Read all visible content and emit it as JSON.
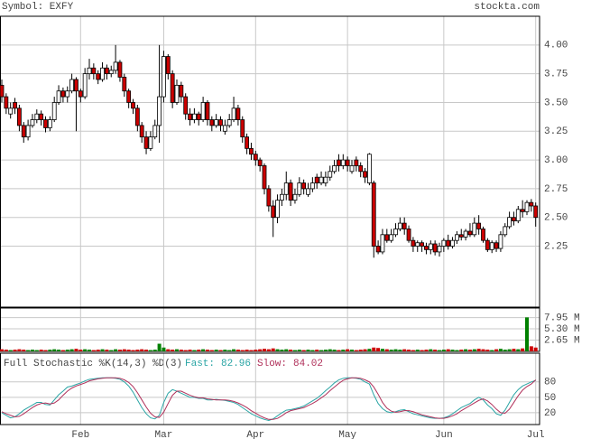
{
  "header": {
    "symbol": "Symbol: EXFY",
    "site": "stockta.com"
  },
  "chart_data": [
    {
      "type": "candlestick",
      "categories": [
        null,
        null,
        null,
        null,
        null,
        null,
        null,
        null,
        null,
        null,
        null,
        null,
        null,
        null,
        null,
        null,
        null,
        null,
        "Feb",
        null,
        null,
        null,
        null,
        null,
        null,
        null,
        null,
        null,
        null,
        null,
        null,
        null,
        null,
        null,
        null,
        null,
        null,
        "Mar",
        null,
        null,
        null,
        null,
        null,
        null,
        null,
        null,
        null,
        null,
        null,
        null,
        null,
        null,
        null,
        null,
        null,
        null,
        null,
        null,
        "Apr",
        null,
        null,
        null,
        null,
        null,
        null,
        null,
        null,
        null,
        null,
        null,
        null,
        null,
        null,
        null,
        null,
        null,
        null,
        null,
        null,
        "May",
        null,
        null,
        null,
        null,
        null,
        null,
        null,
        null,
        null,
        null,
        null,
        null,
        null,
        null,
        null,
        null,
        null,
        null,
        null,
        null,
        null,
        "Jun",
        null,
        null,
        null,
        null,
        null,
        null,
        null,
        null,
        null,
        null,
        null,
        null,
        null,
        null,
        null,
        null,
        null,
        null,
        null,
        null,
        "Jul"
      ],
      "ohlc": [
        [
          3.65,
          3.7,
          3.5,
          3.55
        ],
        [
          3.55,
          3.58,
          3.4,
          3.45
        ],
        [
          3.4,
          3.5,
          3.36,
          3.45
        ],
        [
          3.5,
          3.54,
          3.4,
          3.45
        ],
        [
          3.45,
          3.48,
          3.25,
          3.3
        ],
        [
          3.3,
          3.33,
          3.15,
          3.2
        ],
        [
          3.2,
          3.35,
          3.17,
          3.3
        ],
        [
          3.3,
          3.4,
          3.28,
          3.35
        ],
        [
          3.35,
          3.44,
          3.32,
          3.4
        ],
        [
          3.4,
          3.43,
          3.3,
          3.35
        ],
        [
          3.35,
          3.38,
          3.24,
          3.28
        ],
        [
          3.28,
          3.38,
          3.25,
          3.35
        ],
        [
          3.35,
          3.55,
          3.33,
          3.5
        ],
        [
          3.5,
          3.65,
          3.48,
          3.6
        ],
        [
          3.6,
          3.63,
          3.5,
          3.55
        ],
        [
          3.55,
          3.64,
          3.5,
          3.6
        ],
        [
          3.6,
          3.75,
          3.58,
          3.7
        ],
        [
          3.7,
          3.72,
          3.25,
          3.6
        ],
        [
          3.6,
          3.62,
          3.5,
          3.55
        ],
        [
          3.55,
          3.8,
          3.53,
          3.75
        ],
        [
          3.75,
          3.88,
          3.7,
          3.8
        ],
        [
          3.8,
          3.84,
          3.7,
          3.75
        ],
        [
          3.75,
          3.78,
          3.66,
          3.7
        ],
        [
          3.7,
          3.85,
          3.68,
          3.8
        ],
        [
          3.8,
          3.83,
          3.7,
          3.75
        ],
        [
          3.75,
          3.82,
          3.72,
          3.78
        ],
        [
          3.78,
          4.0,
          3.75,
          3.85
        ],
        [
          3.85,
          3.87,
          3.68,
          3.72
        ],
        [
          3.72,
          3.75,
          3.55,
          3.6
        ],
        [
          3.6,
          3.62,
          3.45,
          3.5
        ],
        [
          3.5,
          3.53,
          3.4,
          3.45
        ],
        [
          3.45,
          3.48,
          3.25,
          3.3
        ],
        [
          3.3,
          3.33,
          3.15,
          3.2
        ],
        [
          3.2,
          3.25,
          3.05,
          3.1
        ],
        [
          3.1,
          3.25,
          3.08,
          3.2
        ],
        [
          3.2,
          3.35,
          3.18,
          3.3
        ],
        [
          3.3,
          4.0,
          3.15,
          3.55
        ],
        [
          3.55,
          3.95,
          3.5,
          3.9
        ],
        [
          3.9,
          3.92,
          3.7,
          3.75
        ],
        [
          3.75,
          3.78,
          3.45,
          3.5
        ],
        [
          3.5,
          3.7,
          3.48,
          3.65
        ],
        [
          3.65,
          3.68,
          3.5,
          3.55
        ],
        [
          3.55,
          3.58,
          3.35,
          3.4
        ],
        [
          3.4,
          3.45,
          3.3,
          3.35
        ],
        [
          3.35,
          3.45,
          3.32,
          3.4
        ],
        [
          3.4,
          3.42,
          3.3,
          3.35
        ],
        [
          3.35,
          3.55,
          3.33,
          3.5
        ],
        [
          3.5,
          3.52,
          3.3,
          3.35
        ],
        [
          3.35,
          3.38,
          3.25,
          3.3
        ],
        [
          3.3,
          3.4,
          3.28,
          3.35
        ],
        [
          3.35,
          3.38,
          3.25,
          3.3
        ],
        [
          3.25,
          3.35,
          3.22,
          3.3
        ],
        [
          3.3,
          3.4,
          3.28,
          3.35
        ],
        [
          3.35,
          3.55,
          3.33,
          3.45
        ],
        [
          3.45,
          3.48,
          3.3,
          3.35
        ],
        [
          3.35,
          3.38,
          3.15,
          3.2
        ],
        [
          3.2,
          3.23,
          3.05,
          3.1
        ],
        [
          3.1,
          3.15,
          3.0,
          3.05
        ],
        [
          3.05,
          3.08,
          2.95,
          3.0
        ],
        [
          3.0,
          3.02,
          2.9,
          2.95
        ],
        [
          2.95,
          2.97,
          2.7,
          2.75
        ],
        [
          2.75,
          2.78,
          2.55,
          2.6
        ],
        [
          2.6,
          2.65,
          2.33,
          2.5
        ],
        [
          2.5,
          2.7,
          2.45,
          2.65
        ],
        [
          2.65,
          2.75,
          2.6,
          2.7
        ],
        [
          2.7,
          2.9,
          2.65,
          2.8
        ],
        [
          2.8,
          2.83,
          2.6,
          2.65
        ],
        [
          2.65,
          2.75,
          2.62,
          2.7
        ],
        [
          2.7,
          2.85,
          2.68,
          2.8
        ],
        [
          2.8,
          2.83,
          2.7,
          2.75
        ],
        [
          2.7,
          2.8,
          2.68,
          2.75
        ],
        [
          2.75,
          2.85,
          2.72,
          2.8
        ],
        [
          2.85,
          2.88,
          2.75,
          2.8
        ],
        [
          2.8,
          2.9,
          2.78,
          2.85
        ],
        [
          2.8,
          2.9,
          2.77,
          2.85
        ],
        [
          2.85,
          2.95,
          2.82,
          2.9
        ],
        [
          2.9,
          3.0,
          2.88,
          2.95
        ],
        [
          3.0,
          3.05,
          2.9,
          2.95
        ],
        [
          2.95,
          3.05,
          2.92,
          3.0
        ],
        [
          3.0,
          3.03,
          2.9,
          2.95
        ],
        [
          2.9,
          3.0,
          2.88,
          2.95
        ],
        [
          3.0,
          3.03,
          2.9,
          2.95
        ],
        [
          2.95,
          2.98,
          2.85,
          2.9
        ],
        [
          2.9,
          2.93,
          2.8,
          2.85
        ],
        [
          2.8,
          3.06,
          2.78,
          3.05
        ],
        [
          2.8,
          2.82,
          2.15,
          2.25
        ],
        [
          2.25,
          2.3,
          2.18,
          2.2
        ],
        [
          2.2,
          2.4,
          2.18,
          2.35
        ],
        [
          2.35,
          2.4,
          2.28,
          2.3
        ],
        [
          2.3,
          2.4,
          2.28,
          2.35
        ],
        [
          2.35,
          2.45,
          2.33,
          2.4
        ],
        [
          2.4,
          2.5,
          2.38,
          2.45
        ],
        [
          2.45,
          2.5,
          2.35,
          2.4
        ],
        [
          2.4,
          2.43,
          2.28,
          2.3
        ],
        [
          2.3,
          2.33,
          2.2,
          2.25
        ],
        [
          2.25,
          2.3,
          2.2,
          2.28
        ],
        [
          2.28,
          2.3,
          2.2,
          2.25
        ],
        [
          2.25,
          2.28,
          2.18,
          2.22
        ],
        [
          2.22,
          2.3,
          2.18,
          2.27
        ],
        [
          2.27,
          2.3,
          2.17,
          2.2
        ],
        [
          2.2,
          2.28,
          2.16,
          2.25
        ],
        [
          2.25,
          2.32,
          2.2,
          2.3
        ],
        [
          2.3,
          2.35,
          2.22,
          2.25
        ],
        [
          2.25,
          2.33,
          2.23,
          2.3
        ],
        [
          2.3,
          2.38,
          2.27,
          2.35
        ],
        [
          2.35,
          2.4,
          2.3,
          2.33
        ],
        [
          2.33,
          2.4,
          2.3,
          2.38
        ],
        [
          2.38,
          2.45,
          2.33,
          2.35
        ],
        [
          2.35,
          2.5,
          2.33,
          2.45
        ],
        [
          2.45,
          2.52,
          2.35,
          2.4
        ],
        [
          2.4,
          2.42,
          2.28,
          2.3
        ],
        [
          2.3,
          2.32,
          2.2,
          2.22
        ],
        [
          2.22,
          2.3,
          2.19,
          2.28
        ],
        [
          2.28,
          2.3,
          2.2,
          2.23
        ],
        [
          2.23,
          2.38,
          2.2,
          2.35
        ],
        [
          2.35,
          2.45,
          2.33,
          2.42
        ],
        [
          2.42,
          2.55,
          2.4,
          2.5
        ],
        [
          2.5,
          2.55,
          2.43,
          2.47
        ],
        [
          2.47,
          2.6,
          2.45,
          2.57
        ],
        [
          2.57,
          2.65,
          2.5,
          2.55
        ],
        [
          2.55,
          2.65,
          2.52,
          2.63
        ],
        [
          2.63,
          2.66,
          2.55,
          2.6
        ],
        [
          2.6,
          2.63,
          2.42,
          2.5
        ]
      ],
      "up_color": "#ffffff",
      "down_color": "#cc0000",
      "ylim": [
        1.72,
        4.25
      ],
      "yticks": [
        {
          "value": 4,
          "label": "4.00"
        },
        3.75,
        {
          "value": 3.5,
          "label": "3.50"
        },
        3.25,
        {
          "value": 3,
          "label": "3.00"
        },
        2.75,
        {
          "value": 2.5,
          "label": "2.50"
        },
        2.25
      ],
      "grid": true
    },
    {
      "type": "bar",
      "values": [
        0.5,
        0.4,
        0.3,
        0.4,
        0.5,
        0.4,
        0.3,
        0.4,
        0.3,
        0.4,
        0.3,
        0.4,
        0.5,
        0.4,
        0.3,
        0.4,
        0.5,
        0.6,
        0.4,
        0.5,
        0.4,
        0.3,
        0.4,
        0.5,
        0.4,
        0.3,
        0.5,
        0.4,
        0.5,
        0.4,
        0.3,
        0.4,
        0.5,
        0.4,
        0.3,
        0.4,
        1.8,
        0.9,
        0.5,
        0.4,
        0.5,
        0.4,
        0.3,
        0.4,
        0.3,
        0.4,
        0.5,
        0.4,
        0.3,
        0.4,
        0.3,
        0.4,
        0.3,
        0.5,
        0.4,
        0.3,
        0.4,
        0.3,
        0.4,
        0.5,
        0.6,
        0.5,
        0.7,
        0.5,
        0.4,
        0.5,
        0.4,
        0.3,
        0.4,
        0.3,
        0.4,
        0.3,
        0.4,
        0.3,
        0.4,
        0.5,
        0.4,
        0.3,
        0.4,
        0.5,
        0.4,
        0.3,
        0.4,
        0.5,
        0.6,
        0.9,
        0.8,
        0.6,
        0.5,
        0.4,
        0.5,
        0.4,
        0.5,
        0.4,
        0.3,
        0.4,
        0.3,
        0.4,
        0.5,
        0.4,
        0.3,
        0.4,
        0.5,
        0.4,
        0.3,
        0.4,
        0.5,
        0.4,
        0.5,
        0.6,
        0.5,
        0.4,
        0.3,
        0.5,
        0.6,
        0.4,
        0.5,
        0.6,
        0.5,
        0.7,
        8.0,
        1.2,
        0.9
      ],
      "up_color": "#008000",
      "down_color": "#cc0000",
      "ylim": [
        0,
        10.2
      ],
      "yticks": [
        {
          "value": 7.95,
          "label": "7.95 M"
        },
        {
          "value": 5.3,
          "label": "5.30 M"
        },
        {
          "value": 2.65,
          "label": "2.65 M"
        }
      ]
    },
    {
      "type": "line",
      "title": "Full Stochastic %K(14,3) %D(3)",
      "series": [
        {
          "name": "Fast:",
          "color": "#2aa5a5",
          "values": [
            20,
            15,
            10,
            12,
            18,
            25,
            30,
            35,
            40,
            40,
            36,
            35,
            45,
            55,
            62,
            70,
            72,
            75,
            78,
            82,
            85,
            86,
            87,
            88,
            88,
            88,
            87,
            85,
            80,
            72,
            60,
            45,
            30,
            18,
            10,
            8,
            15,
            40,
            58,
            65,
            62,
            58,
            54,
            50,
            50,
            48,
            48,
            45,
            45,
            46,
            45,
            44,
            42,
            40,
            36,
            30,
            24,
            18,
            14,
            10,
            7,
            5,
            8,
            14,
            20,
            25,
            26,
            28,
            30,
            33,
            38,
            43,
            48,
            55,
            63,
            70,
            78,
            84,
            87,
            88,
            88,
            87,
            85,
            80,
            76,
            55,
            38,
            28,
            22,
            20,
            22,
            25,
            26,
            22,
            18,
            16,
            14,
            12,
            10,
            9,
            9,
            10,
            13,
            18,
            24,
            30,
            34,
            38,
            45,
            50,
            45,
            35,
            28,
            18,
            15,
            25,
            40,
            55,
            65,
            72,
            76,
            80,
            82.96
          ]
        },
        {
          "name": "Slow:",
          "color": "#b0305a",
          "values": [
            22,
            18,
            15,
            12,
            13,
            18,
            24,
            30,
            35,
            38,
            39,
            37,
            39,
            45,
            54,
            62,
            68,
            72,
            75,
            78,
            82,
            84,
            86,
            87,
            88,
            88,
            88,
            87,
            84,
            79,
            71,
            59,
            45,
            31,
            19,
            12,
            11,
            21,
            38,
            54,
            62,
            62,
            58,
            54,
            51,
            49,
            49,
            47,
            46,
            45,
            45,
            45,
            44,
            42,
            39,
            35,
            30,
            24,
            19,
            14,
            10,
            7,
            7,
            9,
            14,
            20,
            24,
            26,
            28,
            30,
            34,
            38,
            43,
            49,
            55,
            63,
            70,
            77,
            83,
            86,
            88,
            88,
            87,
            84,
            80,
            70,
            56,
            40,
            29,
            23,
            21,
            22,
            24,
            24,
            22,
            19,
            16,
            14,
            12,
            10,
            9,
            9,
            11,
            14,
            18,
            24,
            29,
            34,
            39,
            44,
            47,
            43,
            36,
            27,
            20,
            19,
            27,
            40,
            53,
            64,
            71,
            76,
            84.02
          ]
        }
      ],
      "ylim": [
        -3,
        106
      ],
      "yticks": [
        80,
        50,
        20
      ]
    }
  ]
}
